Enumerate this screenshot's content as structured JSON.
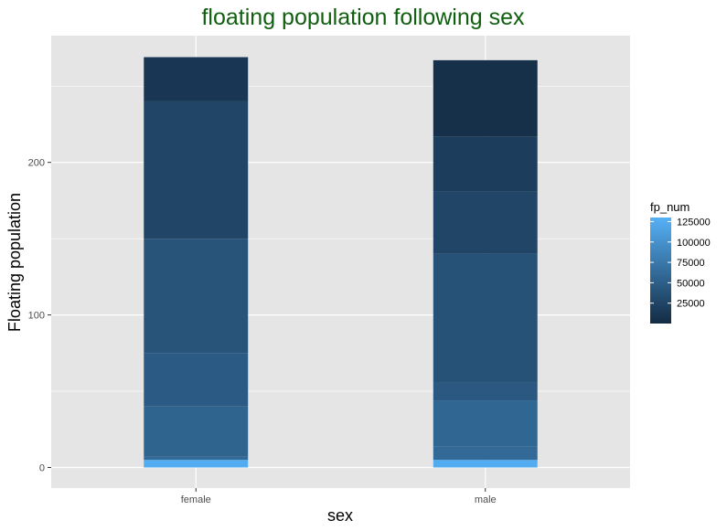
{
  "chart_data": {
    "type": "bar",
    "stacked": true,
    "title": "floating population following sex",
    "xlabel": "sex",
    "ylabel": "Floating population",
    "categories": [
      "female",
      "male"
    ],
    "ylim": [
      0,
      270
    ],
    "y_ticks": [
      0,
      100,
      200
    ],
    "grid": true,
    "segments": [
      {
        "category": "female",
        "y0": 0,
        "y1": 5,
        "fp_num": 125000
      },
      {
        "category": "female",
        "y0": 5,
        "y1": 7,
        "fp_num": 60000
      },
      {
        "category": "female",
        "y0": 7,
        "y1": 40,
        "fp_num": 55000
      },
      {
        "category": "female",
        "y0": 40,
        "y1": 75,
        "fp_num": 47000
      },
      {
        "category": "female",
        "y0": 75,
        "y1": 150,
        "fp_num": 40000
      },
      {
        "category": "female",
        "y0": 150,
        "y1": 240,
        "fp_num": 25000
      },
      {
        "category": "female",
        "y0": 240,
        "y1": 269,
        "fp_num": 12000
      },
      {
        "category": "male",
        "y0": 0,
        "y1": 5,
        "fp_num": 125000
      },
      {
        "category": "male",
        "y0": 5,
        "y1": 14,
        "fp_num": 60000
      },
      {
        "category": "male",
        "y0": 14,
        "y1": 44,
        "fp_num": 57000
      },
      {
        "category": "male",
        "y0": 44,
        "y1": 56,
        "fp_num": 44000
      },
      {
        "category": "male",
        "y0": 56,
        "y1": 140,
        "fp_num": 38000
      },
      {
        "category": "male",
        "y0": 140,
        "y1": 181,
        "fp_num": 25000
      },
      {
        "category": "male",
        "y0": 181,
        "y1": 217,
        "fp_num": 18000
      },
      {
        "category": "male",
        "y0": 217,
        "y1": 267,
        "fp_num": 5000
      }
    ],
    "legend": {
      "title": "fp_num",
      "ticks": [
        25000,
        50000,
        75000,
        100000,
        125000
      ],
      "range": [
        0,
        130000
      ],
      "color_low": "#132b43",
      "color_high": "#56b1f7",
      "placement": "right"
    },
    "colors": {
      "panel_bg": "#e5e5e5",
      "grid": "#ffffff",
      "title": "#0f5f0f"
    }
  }
}
